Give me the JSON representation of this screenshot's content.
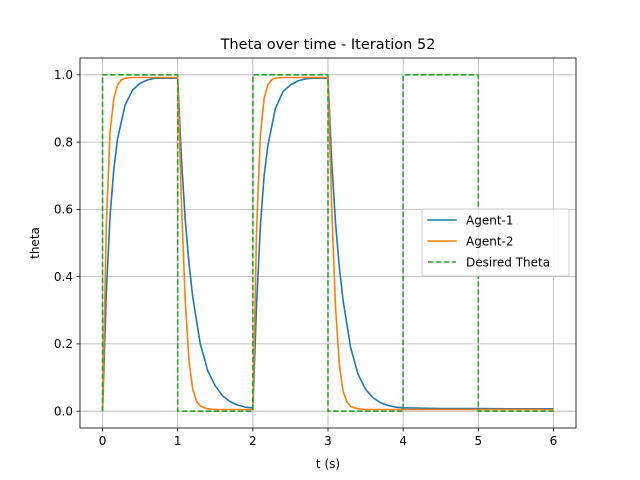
{
  "chart_data": {
    "type": "line",
    "title": "Theta over time - Iteration 52",
    "xlabel": "t (s)",
    "ylabel": "theta",
    "xlim": [
      -0.3,
      6.3
    ],
    "ylim": [
      -0.05,
      1.05
    ],
    "xticks": [
      0,
      1,
      2,
      3,
      4,
      5,
      6
    ],
    "xtick_labels": [
      "0",
      "1",
      "2",
      "3",
      "4",
      "5",
      "6"
    ],
    "yticks": [
      0.0,
      0.2,
      0.4,
      0.6,
      0.8,
      1.0
    ],
    "ytick_labels": [
      "0.0",
      "0.2",
      "0.4",
      "0.6",
      "0.8",
      "1.0"
    ],
    "grid": true,
    "legend_position": "center-right",
    "series": [
      {
        "name": "Agent-1",
        "color": "#1f77b4",
        "style": "solid",
        "x": [
          0,
          0.05,
          0.1,
          0.15,
          0.2,
          0.3,
          0.4,
          0.5,
          0.6,
          0.7,
          0.8,
          0.9,
          1.0,
          1.05,
          1.1,
          1.15,
          1.2,
          1.3,
          1.4,
          1.5,
          1.6,
          1.7,
          1.8,
          1.9,
          2.0,
          2.05,
          2.1,
          2.15,
          2.2,
          2.3,
          2.4,
          2.5,
          2.6,
          2.7,
          2.8,
          2.9,
          3.0,
          3.05,
          3.1,
          3.15,
          3.2,
          3.3,
          3.4,
          3.5,
          3.6,
          3.7,
          3.8,
          3.9,
          4.0,
          4.5,
          5.0,
          5.5,
          6.0
        ],
        "y": [
          0.0,
          0.35,
          0.58,
          0.72,
          0.81,
          0.91,
          0.955,
          0.975,
          0.985,
          0.99,
          0.99,
          0.99,
          0.99,
          0.75,
          0.57,
          0.44,
          0.34,
          0.2,
          0.12,
          0.075,
          0.045,
          0.028,
          0.018,
          0.012,
          0.01,
          0.32,
          0.55,
          0.7,
          0.79,
          0.9,
          0.95,
          0.97,
          0.982,
          0.988,
          0.99,
          0.99,
          0.99,
          0.74,
          0.56,
          0.43,
          0.33,
          0.19,
          0.11,
          0.065,
          0.04,
          0.025,
          0.017,
          0.012,
          0.01,
          0.008,
          0.008,
          0.007,
          0.007
        ]
      },
      {
        "name": "Agent-2",
        "color": "#ff7f0e",
        "style": "solid",
        "x": [
          0,
          0.05,
          0.1,
          0.15,
          0.2,
          0.25,
          0.3,
          0.4,
          0.5,
          0.6,
          0.7,
          0.8,
          0.9,
          1.0,
          1.05,
          1.1,
          1.15,
          1.2,
          1.25,
          1.3,
          1.4,
          1.5,
          1.6,
          1.8,
          2.0,
          2.05,
          2.1,
          2.15,
          2.2,
          2.25,
          2.3,
          2.4,
          2.5,
          2.6,
          2.7,
          2.8,
          2.9,
          3.0,
          3.05,
          3.1,
          3.15,
          3.2,
          3.25,
          3.3,
          3.4,
          3.5,
          3.6,
          3.8,
          4.0,
          4.5,
          5.0,
          5.5,
          6.0
        ],
        "y": [
          0.0,
          0.55,
          0.83,
          0.93,
          0.97,
          0.985,
          0.99,
          0.992,
          0.992,
          0.992,
          0.992,
          0.992,
          0.992,
          0.992,
          0.62,
          0.33,
          0.15,
          0.065,
          0.03,
          0.015,
          0.007,
          0.005,
          0.005,
          0.005,
          0.005,
          0.54,
          0.82,
          0.93,
          0.97,
          0.985,
          0.99,
          0.992,
          0.992,
          0.992,
          0.992,
          0.992,
          0.992,
          0.992,
          0.6,
          0.31,
          0.14,
          0.06,
          0.028,
          0.014,
          0.007,
          0.005,
          0.005,
          0.005,
          0.005,
          0.005,
          0.005,
          0.005,
          0.005
        ]
      },
      {
        "name": "Desired Theta",
        "color": "#2ca02c",
        "style": "dashed",
        "x": [
          0,
          0,
          1,
          1,
          2,
          2,
          3,
          3,
          4,
          4,
          5,
          5,
          6
        ],
        "y": [
          0,
          1,
          1,
          0,
          0,
          1,
          1,
          0,
          0,
          1,
          1,
          0,
          0
        ]
      }
    ]
  }
}
